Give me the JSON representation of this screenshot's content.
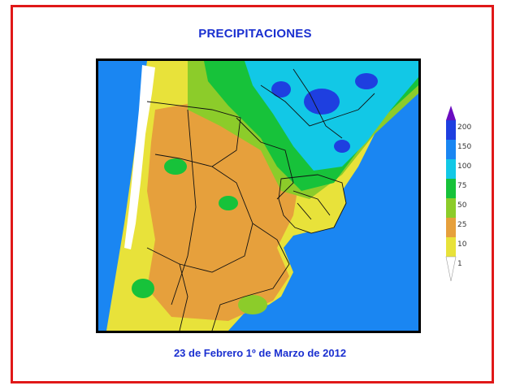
{
  "title": "PRECIPITACIONES",
  "date_range": "23 de Febrero 1º de Marzo de 2012",
  "legend": {
    "levels": [
      "200",
      "150",
      "100",
      "75",
      "50",
      "25",
      "10",
      "1"
    ],
    "colors": [
      "#6a0cc0",
      "#1e3fe0",
      "#1a86f2",
      "#12c8e6",
      "#17c23a",
      "#8ccc2a",
      "#e6a03c",
      "#e8e23a",
      "#ffffff"
    ]
  },
  "map_colors": {
    "ocean": "#1a86f2",
    "very_wet": "#1e3fe0",
    "wet": "#12c8e6",
    "green": "#17c23a",
    "light_green": "#8ccc2a",
    "orange": "#e6a03c",
    "yellow": "#e8e23a",
    "dry": "#ffffff",
    "borders": "#111111"
  }
}
